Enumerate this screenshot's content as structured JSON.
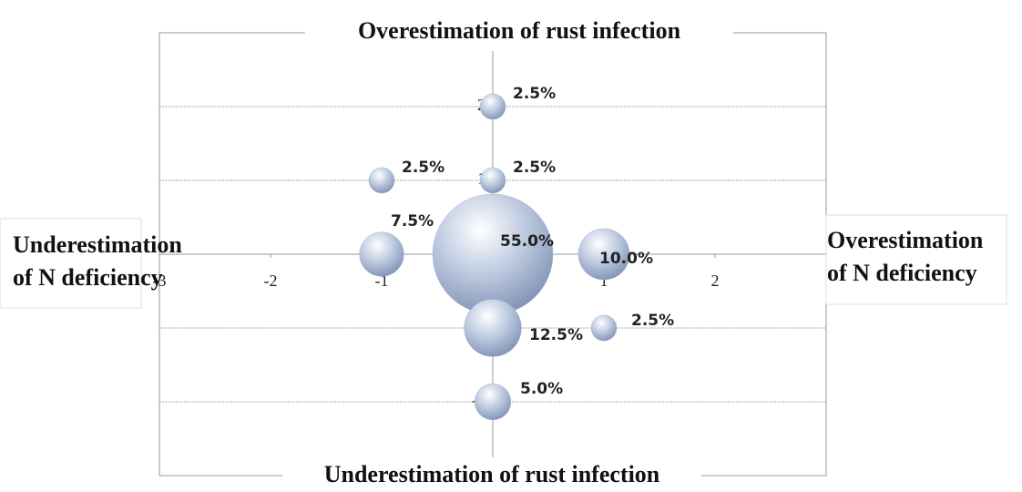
{
  "chart_data": {
    "type": "bubble",
    "top_label": "Overestimation of rust infection",
    "bottom_label": "Underestimation of rust infection",
    "left_label": [
      "Underestimation",
      "of N deficiency"
    ],
    "right_label": [
      "Overestimation",
      "of N deficiency"
    ],
    "x": [
      0,
      0,
      -1,
      -1,
      0,
      1,
      0,
      1,
      0
    ],
    "values": [
      2,
      1,
      1,
      0,
      0,
      0,
      -1,
      -1,
      -2
    ],
    "sizes": [
      2.5,
      2.5,
      2.5,
      7.5,
      55.0,
      10.0,
      12.5,
      2.5,
      5.0
    ],
    "value_labels": [
      "2.5%",
      "2.5%",
      "2.5%",
      "7.5%",
      "55.0%",
      "10.0%",
      "12.5%",
      "2.5%",
      "5.0%"
    ],
    "color": "#a9b9d6",
    "xlim": [
      -3,
      3
    ],
    "ylim": [
      -3,
      3
    ],
    "xticks": [
      -3,
      -2,
      -1,
      0,
      1,
      2
    ],
    "yticks": [
      -2,
      -1,
      0,
      1,
      2
    ],
    "grid": true
  }
}
